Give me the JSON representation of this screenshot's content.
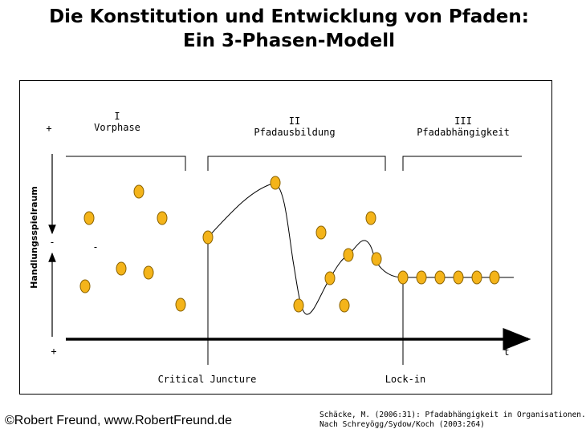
{
  "title": {
    "line1": "Die Konstitution und Entwicklung von Pfaden:",
    "line2": "Ein 3-Phasen-Modell"
  },
  "phases": [
    {
      "numeral": "I",
      "name": "Vorphase"
    },
    {
      "numeral": "II",
      "name": "Pfadausbildung"
    },
    {
      "numeral": "III",
      "name": "Pfadabhängigkeit"
    }
  ],
  "axis": {
    "y_label": "Handlungsspielraum",
    "plus_top": "+",
    "minus_mid": "-",
    "minus_inner": "-",
    "plus_bottom": "+",
    "x_label": "t"
  },
  "markers": {
    "critical_juncture": "Critical Juncture",
    "lock_in": "Lock-in"
  },
  "colors": {
    "dot_fill": "#f4b41a",
    "dot_stroke": "#8a6200",
    "line": "#000000"
  },
  "footer": {
    "copyright": "©Robert Freund, www.RobertFreund.de",
    "source_line1": "Schäcke, M. (2006:31): Pfadabhängigkeit in Organisationen.",
    "source_line2": "Nach Schreyögg/Sydow/Koch (2003:264)"
  }
}
